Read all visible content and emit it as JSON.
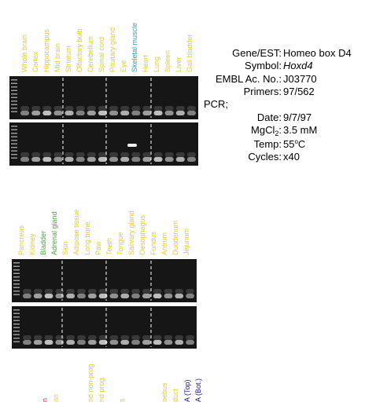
{
  "top_lanes": [
    {
      "label": "Whole brain",
      "color": "#e8c830"
    },
    {
      "label": "Cortex",
      "color": "#e8c830"
    },
    {
      "label": "Hippocampus",
      "color": "#e8c830"
    },
    {
      "label": "Mid brain",
      "color": "#e8c830"
    },
    {
      "label": "Striatum",
      "color": "#e8c830"
    },
    {
      "label": "Olfactory bulb",
      "color": "#e8c830"
    },
    {
      "label": "Cerebellum",
      "color": "#e8c830"
    },
    {
      "label": "Spinal cord",
      "color": "#e8c830"
    },
    {
      "label": "Pituitary gland",
      "color": "#e8c830"
    },
    {
      "label": "Eye",
      "color": "#e8c830"
    },
    {
      "label": "Skeletal muscle",
      "color": "#2a9fd0"
    },
    {
      "label": "Heart",
      "color": "#e8c830"
    },
    {
      "label": "Lung",
      "color": "#e8c830"
    },
    {
      "label": "Spleen",
      "color": "#e8c830"
    },
    {
      "label": "Liver",
      "color": "#e8c830"
    },
    {
      "label": "Gall bladder",
      "color": "#e8c830"
    }
  ],
  "bottom_lanes": [
    {
      "label": "Pancreas",
      "color": "#e8c830"
    },
    {
      "label": "Kidney",
      "color": "#e8c830"
    },
    {
      "label": "Bladder",
      "color": "#3cb030"
    },
    {
      "label": "Adrenal gland",
      "color": "#3cb030"
    },
    {
      "label": "Skin",
      "color": "#e8c830"
    },
    {
      "label": "Adipose tissue",
      "color": "#e8c830"
    },
    {
      "label": "Long bone",
      "color": "#e8c830"
    },
    {
      "label": "Paw",
      "color": "#e8c830"
    },
    {
      "label": "Teeth",
      "color": "#e8c830"
    },
    {
      "label": "Tongue",
      "color": "#e8c830"
    },
    {
      "label": "Salivary gland",
      "color": "#e8c830"
    },
    {
      "label": "Oesophagus",
      "color": "#e8c830"
    },
    {
      "label": "Fundus",
      "color": "#e8c830"
    },
    {
      "label": "Antrum",
      "color": "#e8c830"
    },
    {
      "label": "Duodenum",
      "color": "#e8c830"
    },
    {
      "label": "Jejunum",
      "color": "#e8c830"
    }
  ],
  "cut_lanes": [
    {
      "label": "n",
      "color": "#d02020"
    },
    {
      "label": "on",
      "color": "#e8c830"
    },
    {
      "label": "nd non-prog.",
      "color": "#e8c830"
    },
    {
      "label": "nd prog.",
      "color": "#e8c830"
    },
    {
      "label": "s",
      "color": "#e8c830"
    },
    {
      "label": "oebus",
      "color": "#e8c830"
    },
    {
      "label": "duct",
      "color": "#e8c830"
    },
    {
      "label": "A (Top)",
      "color": "#1a1a80"
    },
    {
      "label": "A (Bot.)",
      "color": "#1a1a80"
    }
  ],
  "info": {
    "gene_key": "Gene/EST:",
    "gene": "Homeo box D4",
    "symbol_key": "Symbol:",
    "symbol": "Hoxd4",
    "embl_key": "EMBL Ac. No.:",
    "embl": "J03770",
    "primers_key": "Primers:",
    "primers": "97/562",
    "pcr": "PCR;",
    "date_key": "Date:",
    "date": "9/7/97",
    "mg_key": "MgCl",
    "mg_sub": "2",
    "mg_colon": ":",
    "mg": "3.5 mM",
    "temp_key": "Temp:",
    "temp": "55",
    "temp_sup": "o",
    "temp_unit": "C",
    "cycles_key": "Cycles:",
    "cycles": "x40"
  }
}
